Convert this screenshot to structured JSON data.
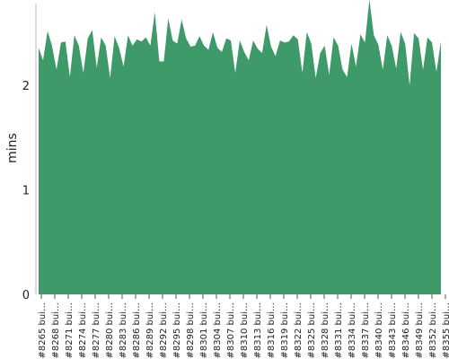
{
  "chart_data": {
    "type": "area",
    "title": "",
    "xlabel": "",
    "ylabel": "mins",
    "ylim": [
      0,
      2.8
    ],
    "yticks": [
      0,
      1,
      2
    ],
    "grid": true,
    "x_ticks": [
      "#8265 bui…",
      "#8268 bui…",
      "#8271 bui…",
      "#8274 bui…",
      "#8277 bui…",
      "#8280 bui…",
      "#8283 bui…",
      "#8286 bui…",
      "#8289 bui…",
      "#8292 bui…",
      "#8295 bui…",
      "#8298 bui…",
      "#8301 bui…",
      "#8304 bui…",
      "#8307 bui…",
      "#8310 bui…",
      "#8313 bui…",
      "#8316 bui…",
      "#8319 bui…",
      "#8322 bui…",
      "#8325 bui…",
      "#8328 bui…",
      "#8331 bui…",
      "#8334 bui…",
      "#8337 bui…",
      "#8340 bui…",
      "#8343 bui…",
      "#8346 bui…",
      "#8349 bui…",
      "#8352 bui…",
      "#8355 bui…"
    ],
    "series": [
      {
        "color": "#3f9a6a",
        "values": [
          2.36,
          2.24,
          2.52,
          2.38,
          2.15,
          2.41,
          2.42,
          2.08,
          2.48,
          2.38,
          2.12,
          2.45,
          2.53,
          2.17,
          2.46,
          2.38,
          2.07,
          2.47,
          2.36,
          2.18,
          2.48,
          2.38,
          2.44,
          2.42,
          2.46,
          2.38,
          2.7,
          2.23,
          2.23,
          2.64,
          2.43,
          2.4,
          2.63,
          2.45,
          2.37,
          2.38,
          2.47,
          2.38,
          2.34,
          2.51,
          2.36,
          2.32,
          2.45,
          2.43,
          2.12,
          2.43,
          2.32,
          2.24,
          2.43,
          2.35,
          2.31,
          2.58,
          2.37,
          2.28,
          2.43,
          2.41,
          2.42,
          2.48,
          2.44,
          2.12,
          2.51,
          2.4,
          2.07,
          2.31,
          2.38,
          2.1,
          2.46,
          2.38,
          2.15,
          2.08,
          2.4,
          2.18,
          2.49,
          2.41,
          2.82,
          2.48,
          2.39,
          2.15,
          2.48,
          2.38,
          2.16,
          2.51,
          2.4,
          2.0,
          2.5,
          2.45,
          2.15,
          2.46,
          2.41,
          2.13,
          2.42
        ]
      }
    ]
  }
}
